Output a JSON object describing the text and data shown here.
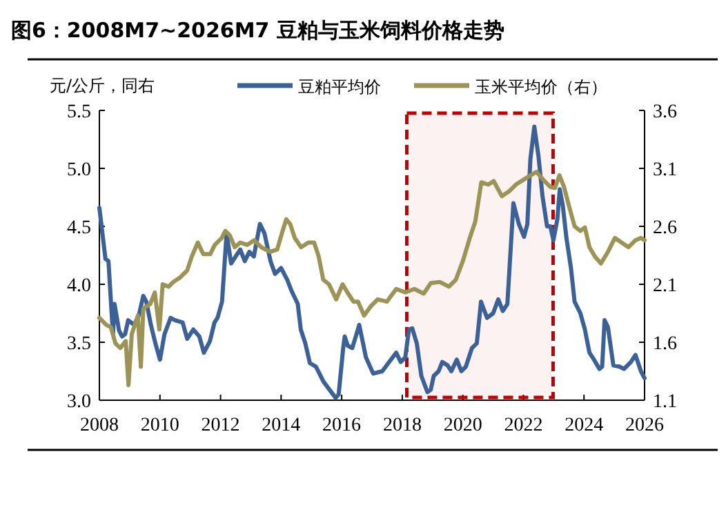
{
  "chart_data": {
    "type": "line",
    "title": "图6：2008M7~2026M7 豆粕与玉米饲料价格走势",
    "ylabel": "元/公斤，同右",
    "xlim": [
      2008,
      2026
    ],
    "xticks": [
      2008,
      2010,
      2012,
      2014,
      2016,
      2018,
      2020,
      2022,
      2024,
      2026
    ],
    "ylim": [
      3.0,
      5.5
    ],
    "yticks": [
      {
        "value": 3.0,
        "label": "3.0"
      },
      {
        "value": 3.5,
        "label": "3.5"
      },
      {
        "value": 4.0,
        "label": "4.0"
      },
      {
        "value": 4.5,
        "label": "4.5"
      },
      {
        "value": 5.0,
        "label": "5.0"
      },
      {
        "value": 5.5,
        "label": "5.5"
      }
    ],
    "y2lim": [
      1.1,
      3.6
    ],
    "y2ticks": [
      1.1,
      1.6,
      2.1,
      2.6,
      3.1,
      3.6
    ],
    "legend": "top",
    "grid": false,
    "marker": "none",
    "line_style": "solid",
    "bands": [
      {
        "axis": "x",
        "from": 2018.15,
        "to": 2022.98,
        "color": "#c00000"
      }
    ],
    "series": [
      {
        "name": "豆粕平均价",
        "color": "#3b6196",
        "x": [
          2008.0,
          2008.2,
          2008.3,
          2008.4,
          2008.45,
          2008.5,
          2008.65,
          2008.75,
          2008.85,
          2008.95,
          2009.15,
          2009.3,
          2009.45,
          2009.55,
          2009.7,
          2009.85,
          2010.0,
          2010.15,
          2010.35,
          2010.5,
          2010.75,
          2010.9,
          2011.1,
          2011.3,
          2011.45,
          2011.65,
          2011.8,
          2011.9,
          2012.05,
          2012.2,
          2012.35,
          2012.5,
          2012.65,
          2012.8,
          2012.95,
          2013.1,
          2013.3,
          2013.45,
          2013.65,
          2013.8,
          2014.0,
          2014.2,
          2014.35,
          2014.55,
          2014.65,
          2014.8,
          2014.95,
          2015.15,
          2015.4,
          2015.6,
          2015.8,
          2015.9,
          2016.05,
          2016.1,
          2016.2,
          2016.35,
          2016.58,
          2016.8,
          2017.04,
          2017.34,
          2017.57,
          2017.8,
          2017.95,
          2018.1,
          2018.22,
          2018.33,
          2018.48,
          2018.63,
          2018.83,
          2018.94,
          2019.04,
          2019.2,
          2019.32,
          2019.5,
          2019.62,
          2019.8,
          2019.95,
          2020.1,
          2020.3,
          2020.46,
          2020.6,
          2020.8,
          2021.0,
          2021.17,
          2021.32,
          2021.47,
          2021.67,
          2021.85,
          2022.02,
          2022.13,
          2022.23,
          2022.36,
          2022.5,
          2022.63,
          2022.78,
          2022.89,
          2022.99,
          2023.12,
          2023.2,
          2023.3,
          2023.42,
          2023.57,
          2023.69,
          2023.88,
          2024.03,
          2024.18,
          2024.33,
          2024.51,
          2024.6,
          2024.68,
          2024.79,
          2024.97,
          2025.17,
          2025.32,
          2025.55,
          2025.7,
          2025.88,
          2026.0
        ],
        "values": [
          4.66,
          4.22,
          4.2,
          3.77,
          3.57,
          3.83,
          3.6,
          3.55,
          3.57,
          3.69,
          3.65,
          3.73,
          3.9,
          3.85,
          3.65,
          3.49,
          3.35,
          3.57,
          3.71,
          3.69,
          3.67,
          3.53,
          3.61,
          3.55,
          3.41,
          3.51,
          3.67,
          3.71,
          3.85,
          4.44,
          4.18,
          4.24,
          4.3,
          4.2,
          4.28,
          4.24,
          4.52,
          4.44,
          4.2,
          4.09,
          4.14,
          4.04,
          3.94,
          3.83,
          3.61,
          3.49,
          3.32,
          3.29,
          3.16,
          3.09,
          3.02,
          3.05,
          3.45,
          3.55,
          3.47,
          3.45,
          3.65,
          3.37,
          3.23,
          3.25,
          3.33,
          3.41,
          3.33,
          3.37,
          3.61,
          3.62,
          3.49,
          3.21,
          3.07,
          3.09,
          3.21,
          3.25,
          3.33,
          3.3,
          3.25,
          3.35,
          3.25,
          3.29,
          3.45,
          3.49,
          3.85,
          3.71,
          3.75,
          3.87,
          3.77,
          3.83,
          4.7,
          4.52,
          4.41,
          4.52,
          5.08,
          5.36,
          5.1,
          4.76,
          4.5,
          4.5,
          4.38,
          4.56,
          4.82,
          4.68,
          4.4,
          4.14,
          3.85,
          3.75,
          3.61,
          3.41,
          3.35,
          3.27,
          3.29,
          3.69,
          3.63,
          3.3,
          3.29,
          3.27,
          3.33,
          3.39,
          3.25,
          3.19
        ]
      },
      {
        "name": "玉米平均价（右）",
        "color": "#9c9357",
        "axis": "y2",
        "x": [
          2008.0,
          2008.23,
          2008.38,
          2008.53,
          2008.69,
          2008.87,
          2008.96,
          2009.07,
          2009.27,
          2009.37,
          2009.45,
          2009.68,
          2009.83,
          2009.98,
          2010.09,
          2010.29,
          2010.44,
          2010.67,
          2010.9,
          2011.05,
          2011.25,
          2011.43,
          2011.66,
          2011.81,
          2012.04,
          2012.16,
          2012.31,
          2012.47,
          2012.65,
          2012.88,
          2013.11,
          2013.34,
          2013.64,
          2013.87,
          2014.05,
          2014.17,
          2014.3,
          2014.45,
          2014.66,
          2014.9,
          2015.09,
          2015.24,
          2015.39,
          2015.58,
          2015.82,
          2016.03,
          2016.19,
          2016.39,
          2016.54,
          2016.74,
          2016.96,
          2017.19,
          2017.49,
          2017.8,
          2018.1,
          2018.4,
          2018.71,
          2018.94,
          2019.24,
          2019.54,
          2019.77,
          2020.0,
          2020.23,
          2020.41,
          2020.61,
          2020.84,
          2021.02,
          2021.29,
          2021.52,
          2021.75,
          2022.05,
          2022.43,
          2022.66,
          2022.89,
          2023.04,
          2023.19,
          2023.34,
          2023.5,
          2023.69,
          2023.88,
          2024.03,
          2024.18,
          2024.36,
          2024.56,
          2024.79,
          2025.02,
          2025.24,
          2025.47,
          2025.7,
          2025.88,
          2026.0
        ],
        "values": [
          1.81,
          1.75,
          1.73,
          1.59,
          1.55,
          1.61,
          1.23,
          1.67,
          1.83,
          1.39,
          1.89,
          1.93,
          2.03,
          1.71,
          2.1,
          2.08,
          2.12,
          2.16,
          2.22,
          2.34,
          2.46,
          2.36,
          2.36,
          2.44,
          2.5,
          2.56,
          2.52,
          2.42,
          2.46,
          2.44,
          2.48,
          2.42,
          2.38,
          2.4,
          2.56,
          2.66,
          2.62,
          2.5,
          2.42,
          2.46,
          2.46,
          2.34,
          2.14,
          2.1,
          1.97,
          2.1,
          2.03,
          1.95,
          1.95,
          1.83,
          1.91,
          1.97,
          1.95,
          2.06,
          2.03,
          2.06,
          2.02,
          2.11,
          2.12,
          2.08,
          2.14,
          2.3,
          2.5,
          2.64,
          2.98,
          2.96,
          2.99,
          2.86,
          2.9,
          2.96,
          3.01,
          3.07,
          3.0,
          2.94,
          2.93,
          3.04,
          2.94,
          2.78,
          2.6,
          2.56,
          2.59,
          2.42,
          2.34,
          2.28,
          2.38,
          2.5,
          2.46,
          2.42,
          2.48,
          2.5,
          2.48
        ]
      }
    ]
  }
}
